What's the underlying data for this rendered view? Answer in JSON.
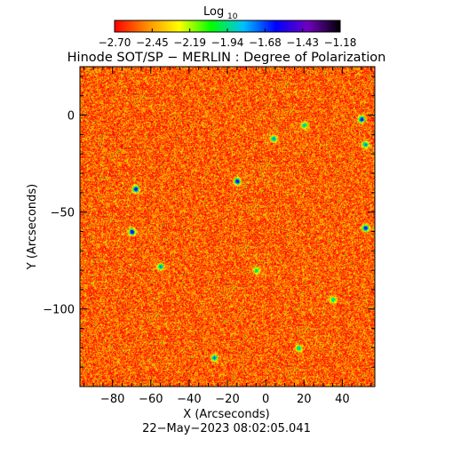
{
  "colorbar": {
    "label": "Log",
    "label_sub": "10",
    "ticks": [
      "−2.70",
      "−2.45",
      "−2.19",
      "−1.94",
      "−1.68",
      "−1.43",
      "−1.18"
    ],
    "range": [
      -2.7,
      -1.18
    ],
    "colormap": [
      "#ff0000",
      "#ff8c00",
      "#ffff00",
      "#00ff00",
      "#00c0ff",
      "#0000ff",
      "#7000c0",
      "#000000"
    ]
  },
  "chart_data": {
    "type": "heatmap",
    "title": "Hinode SOT/SP − MERLIN : Degree of Polarization",
    "xlabel": "X (Arcseconds)",
    "ylabel": "Y (Arcseconds)",
    "xlim": [
      -97,
      57
    ],
    "ylim": [
      -140,
      25
    ],
    "xticks": [
      -80,
      -60,
      -40,
      -20,
      0,
      20,
      40
    ],
    "yticks": [
      0,
      -50,
      -100
    ],
    "xticklabels": [
      "−80",
      "−60",
      "−40",
      "−20",
      "0",
      "20",
      "40"
    ],
    "yticklabels": [
      "0",
      "−50",
      "−100"
    ],
    "value_range": [
      -2.7,
      -1.18
    ],
    "background_value": -2.55,
    "features": [
      {
        "x": -68,
        "y": -38,
        "value": -1.4
      },
      {
        "x": -70,
        "y": -60,
        "value": -1.35
      },
      {
        "x": -55,
        "y": -78,
        "value": -1.7
      },
      {
        "x": -15,
        "y": -34,
        "value": -1.4
      },
      {
        "x": 4,
        "y": -12,
        "value": -1.7
      },
      {
        "x": 20,
        "y": -5,
        "value": -1.8
      },
      {
        "x": 50,
        "y": -2,
        "value": -1.45
      },
      {
        "x": 52,
        "y": -15,
        "value": -1.7
      },
      {
        "x": 52,
        "y": -58,
        "value": -1.45
      },
      {
        "x": -27,
        "y": -125,
        "value": -1.7
      },
      {
        "x": -5,
        "y": -80,
        "value": -1.9
      },
      {
        "x": 17,
        "y": -120,
        "value": -1.8
      },
      {
        "x": 35,
        "y": -95,
        "value": -1.85
      }
    ],
    "timestamp": "22−May−2023 08:02:05.041"
  }
}
